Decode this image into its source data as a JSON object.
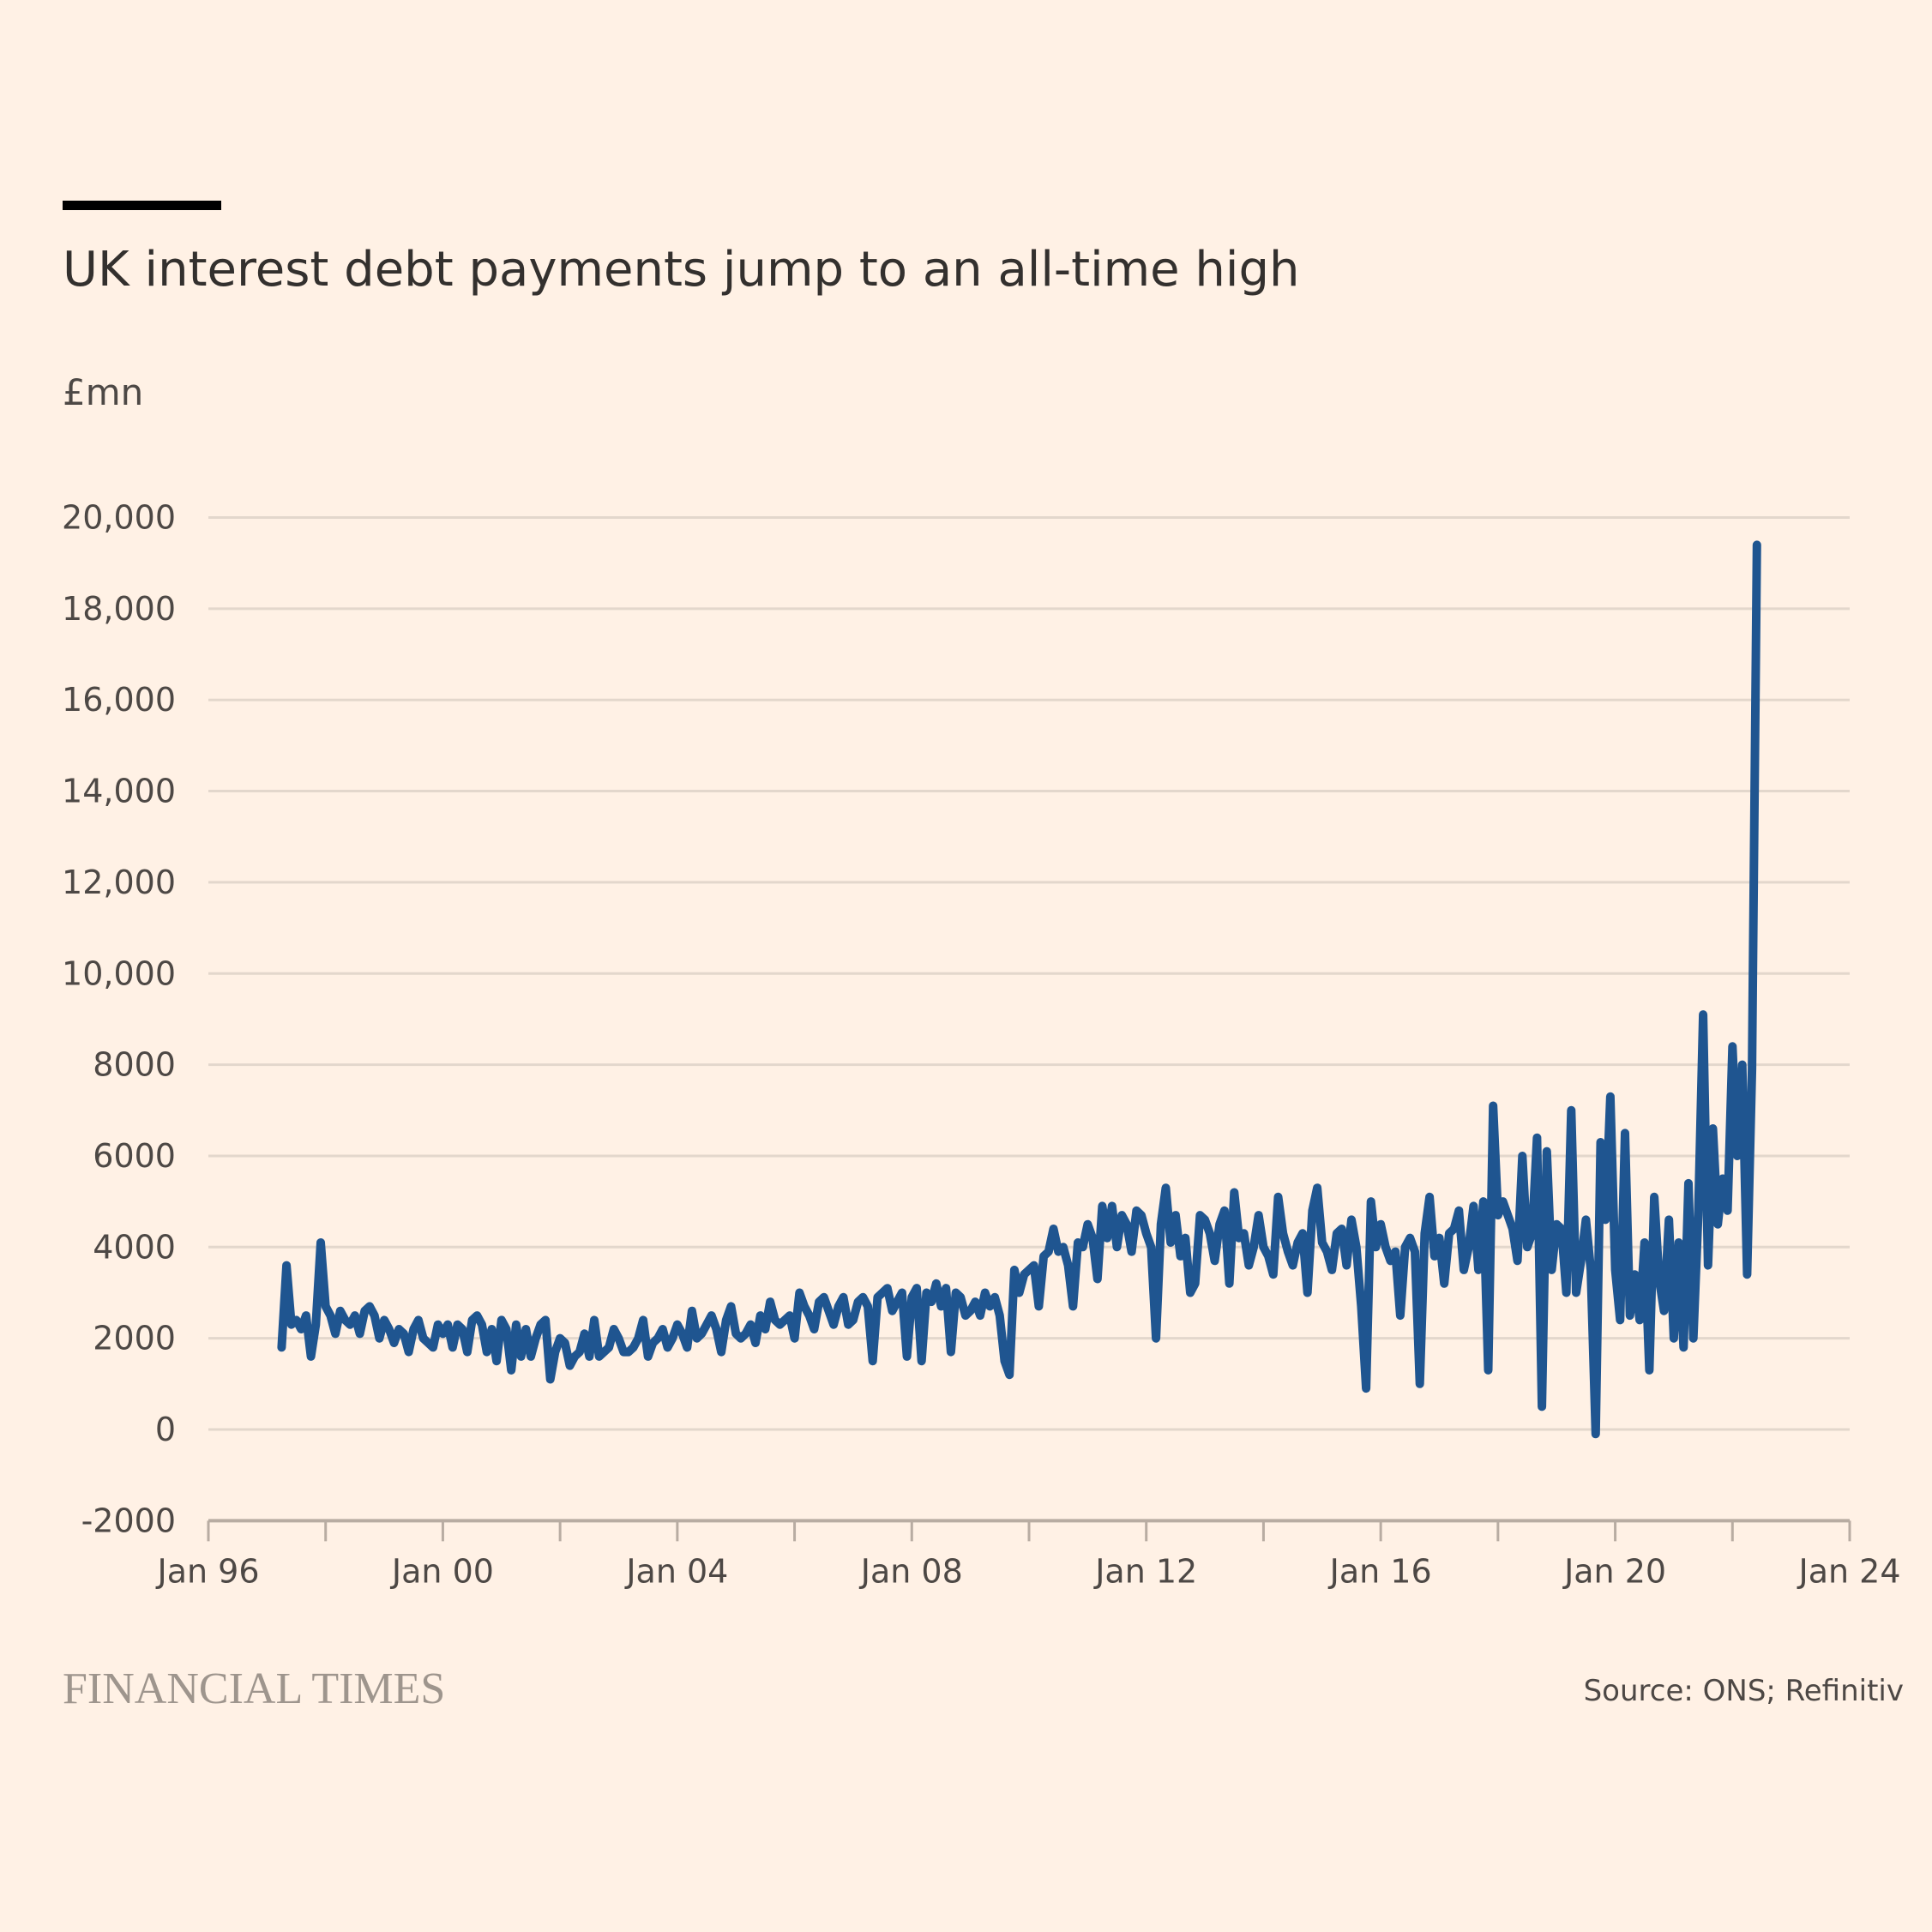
{
  "title": "UK interest debt payments jump to an all-time high",
  "unit_label": "£mn",
  "source": "Source: ONS; Refinitiv",
  "brand": "FINANCIAL TIMES",
  "colors": {
    "background": "#fff1e5",
    "line": "#1f5590",
    "grid": "#e3d7cc",
    "axis": "#b8aca2"
  },
  "chart_data": {
    "type": "line",
    "title": "UK interest debt payments jump to an all-time high",
    "ylabel": "£mn",
    "frequency": "monthly",
    "ylim": [
      -2000,
      20000
    ],
    "yticks": [
      20000,
      18000,
      16000,
      14000,
      12000,
      10000,
      8000,
      6000,
      4000,
      2000,
      0,
      -2000
    ],
    "ytick_labels": [
      "20,000",
      "18,000",
      "16,000",
      "14,000",
      "12,000",
      "10,000",
      "8000",
      "6000",
      "4000",
      "2000",
      "0",
      "-2000"
    ],
    "xlim": [
      "1996-01",
      "2024-01"
    ],
    "xticks_labeled": [
      1996,
      2000,
      2004,
      2008,
      2012,
      2016,
      2020,
      2024
    ],
    "xtick_labels": [
      "Jan 96",
      "Jan 00",
      "Jan 04",
      "Jan 08",
      "Jan 12",
      "Jan 16",
      "Jan 20",
      "Jan 24"
    ],
    "xticks_minor": [
      1998,
      2002,
      2006,
      2010,
      2014,
      2018,
      2022
    ],
    "grid": true,
    "values_by_year": {
      "1997": [
        null,
        null,
        null,
        1800,
        3600,
        2300,
        2400,
        2200,
        2500,
        1600,
        2300,
        4100
      ],
      "1998": [
        2700,
        2500,
        2100,
        2600,
        2400,
        2300,
        2500,
        2100,
        2600,
        2700,
        2500,
        2000
      ],
      "1999": [
        2400,
        2200,
        1900,
        2200,
        2100,
        1700,
        2200,
        2400,
        2000,
        1900,
        1800,
        2300
      ],
      "2000": [
        2100,
        2300,
        1800,
        2300,
        2200,
        1700,
        2400,
        2500,
        2300,
        1700,
        2200,
        1500
      ],
      "2001": [
        2400,
        2200,
        1300,
        2300,
        1600,
        2200,
        1600,
        2000,
        2300,
        2400,
        1100,
        1700
      ],
      "2002": [
        2000,
        1900,
        1400,
        1600,
        1700,
        2100,
        1600,
        2400,
        1600,
        1700,
        1800,
        2200
      ],
      "2003": [
        2000,
        1700,
        1700,
        1800,
        2000,
        2400,
        1600,
        1900,
        2000,
        2200,
        1800,
        2000
      ],
      "2004": [
        2300,
        2100,
        1800,
        2600,
        2000,
        2100,
        2300,
        2500,
        2200,
        1700,
        2400,
        2700
      ],
      "2005": [
        2100,
        2000,
        2100,
        2300,
        1900,
        2500,
        2200,
        2800,
        2400,
        2300,
        2400,
        2500
      ],
      "2006": [
        2000,
        3000,
        2700,
        2500,
        2200,
        2800,
        2900,
        2600,
        2300,
        2700,
        2900,
        2300
      ],
      "2007": [
        2400,
        2800,
        2900,
        2700,
        1500,
        2900,
        3000,
        3100,
        2600,
        2800,
        3000,
        1600
      ],
      "2008": [
        2900,
        3100,
        1500,
        3000,
        2800,
        3200,
        2700,
        3100,
        1700,
        3000,
        2900,
        2500
      ],
      "2009": [
        2600,
        2800,
        2500,
        3000,
        2700,
        2900,
        2500,
        1500,
        1200,
        3500,
        3000,
        3400
      ],
      "2010": [
        3500,
        3600,
        2700,
        3800,
        3900,
        4400,
        3900,
        4000,
        3600,
        2700,
        4100,
        4000
      ],
      "2011": [
        4500,
        4200,
        3300,
        4900,
        4200,
        4900,
        4000,
        4700,
        4500,
        3900,
        4800,
        4700
      ],
      "2012": [
        4300,
        4000,
        2000,
        4500,
        5300,
        4100,
        4700,
        3800,
        4200,
        3000,
        3200,
        4700
      ],
      "2013": [
        4600,
        4300,
        3700,
        4500,
        4800,
        3200,
        5200,
        4200,
        4300,
        3600,
        4000,
        4700
      ],
      "2014": [
        4000,
        3800,
        3400,
        5100,
        4300,
        3900,
        3600,
        4100,
        4300,
        3000,
        4800,
        5300
      ],
      "2015": [
        4100,
        3900,
        3500,
        4300,
        4400,
        3600,
        4600,
        4000,
        2700,
        900,
        5000,
        4000
      ],
      "2016": [
        4500,
        4000,
        3700,
        3900,
        2500,
        4000,
        4200,
        3900,
        1000,
        4300,
        5100,
        3800
      ],
      "2017": [
        4200,
        3200,
        4300,
        4400,
        4800,
        3500,
        4000,
        4900,
        3500,
        5000,
        1300,
        7100
      ],
      "2018": [
        4700,
        5000,
        4700,
        4400,
        3700,
        6000,
        4000,
        4300,
        6400,
        500,
        6100,
        3500
      ],
      "2019": [
        4500,
        4400,
        3000,
        7000,
        3000,
        3700,
        4600,
        3500,
        -100,
        6300,
        4600,
        7300
      ],
      "2020": [
        3500,
        2400,
        6500,
        2500,
        3400,
        2400,
        4100,
        1300,
        5100,
        3300,
        2600,
        4600
      ],
      "2021": [
        2000,
        4100,
        1800,
        5400,
        2000,
        4700,
        9100,
        3600,
        6600,
        4500,
        5500,
        4800
      ],
      "2022": [
        8400,
        6000,
        8000,
        3400,
        7900,
        19400
      ]
    }
  }
}
